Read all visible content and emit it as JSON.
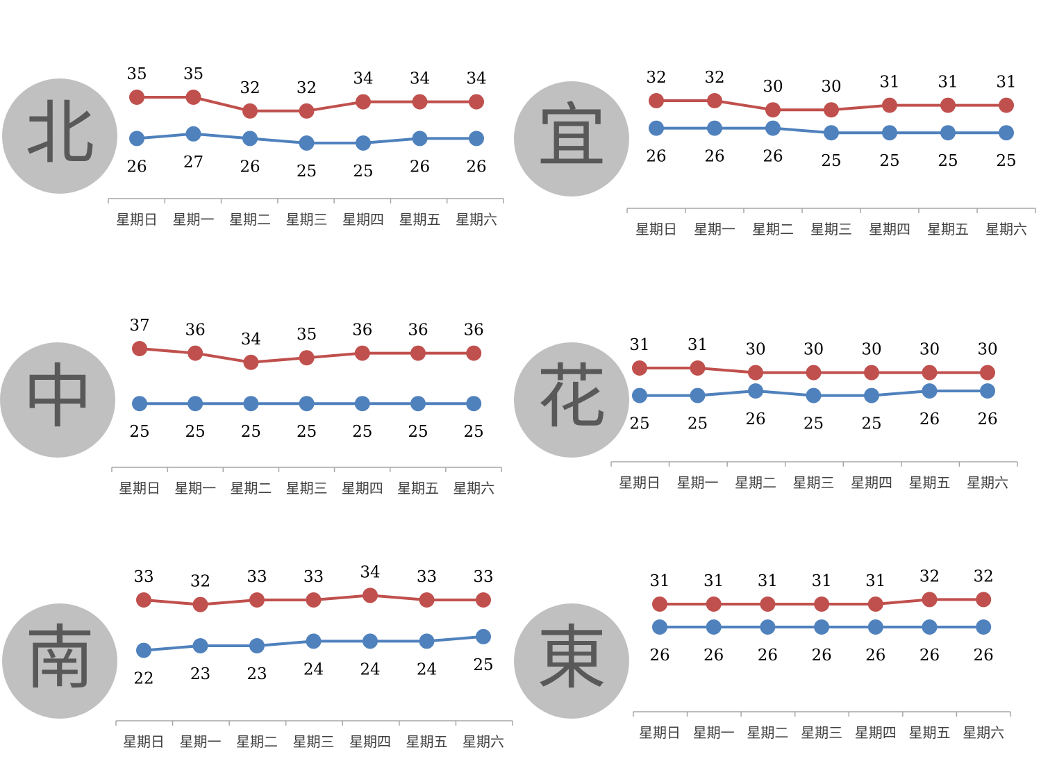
{
  "colors": {
    "high": "#c0504d",
    "low": "#4f81bd",
    "circle": "#c0c0c0",
    "region_text": "#595959",
    "axis": "#a6a6a6",
    "label": "#000000",
    "tick_label": "#404040"
  },
  "chart_data": [
    {
      "type": "line",
      "region": "北",
      "categories": [
        "星期日",
        "星期一",
        "星期二",
        "星期三",
        "星期四",
        "星期五",
        "星期六"
      ],
      "series": [
        {
          "key": "high",
          "values": [
            35,
            35,
            32,
            32,
            34,
            34,
            34
          ]
        },
        {
          "key": "low",
          "values": [
            26,
            27,
            26,
            25,
            25,
            26,
            26
          ]
        }
      ]
    },
    {
      "type": "line",
      "region": "宜",
      "categories": [
        "星期日",
        "星期一",
        "星期二",
        "星期三",
        "星期四",
        "星期五",
        "星期六"
      ],
      "series": [
        {
          "key": "high",
          "values": [
            32,
            32,
            30,
            30,
            31,
            31,
            31
          ]
        },
        {
          "key": "low",
          "values": [
            26,
            26,
            26,
            25,
            25,
            25,
            25
          ]
        }
      ]
    },
    {
      "type": "line",
      "region": "中",
      "categories": [
        "星期日",
        "星期一",
        "星期二",
        "星期三",
        "星期四",
        "星期五",
        "星期六"
      ],
      "series": [
        {
          "key": "high",
          "values": [
            37,
            36,
            34,
            35,
            36,
            36,
            36
          ]
        },
        {
          "key": "low",
          "values": [
            25,
            25,
            25,
            25,
            25,
            25,
            25
          ]
        }
      ]
    },
    {
      "type": "line",
      "region": "花",
      "categories": [
        "星期日",
        "星期一",
        "星期二",
        "星期三",
        "星期四",
        "星期五",
        "星期六"
      ],
      "series": [
        {
          "key": "high",
          "values": [
            31,
            31,
            30,
            30,
            30,
            30,
            30
          ]
        },
        {
          "key": "low",
          "values": [
            25,
            25,
            26,
            25,
            25,
            26,
            26
          ]
        }
      ]
    },
    {
      "type": "line",
      "region": "南",
      "categories": [
        "星期日",
        "星期一",
        "星期二",
        "星期三",
        "星期四",
        "星期五",
        "星期六"
      ],
      "series": [
        {
          "key": "high",
          "values": [
            33,
            32,
            33,
            33,
            34,
            33,
            33
          ]
        },
        {
          "key": "low",
          "values": [
            22,
            23,
            23,
            24,
            24,
            24,
            25
          ]
        }
      ]
    },
    {
      "type": "line",
      "region": "東",
      "categories": [
        "星期日",
        "星期一",
        "星期二",
        "星期三",
        "星期四",
        "星期五",
        "星期六"
      ],
      "series": [
        {
          "key": "high",
          "values": [
            31,
            31,
            31,
            31,
            31,
            32,
            32
          ]
        },
        {
          "key": "low",
          "values": [
            26,
            26,
            26,
            26,
            26,
            26,
            26
          ]
        }
      ]
    }
  ]
}
